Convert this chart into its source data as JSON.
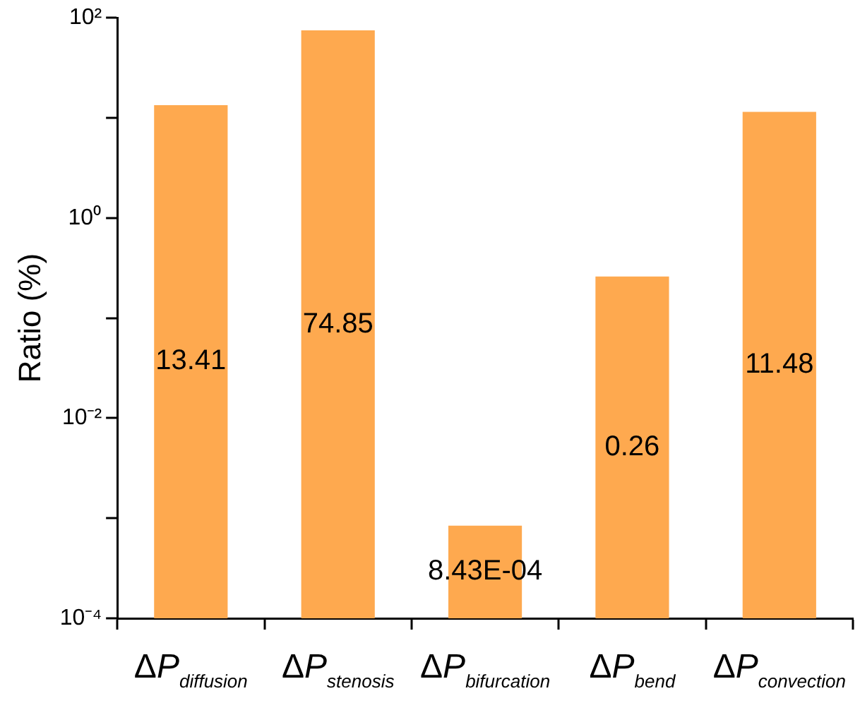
{
  "chart_data": {
    "type": "bar",
    "ylabel": "Ratio (%)",
    "categories": [
      "ΔP$_{diffusion}$",
      "ΔP$_{stenosis}$",
      "ΔP$_{bifurcation}$",
      "ΔP$_{bend}$",
      "ΔP$_{convection}$"
    ],
    "values": [
      13.41,
      74.85,
      0.000843,
      0.26,
      11.48
    ],
    "value_labels": [
      "13.41",
      "74.85",
      "8.43E-04",
      "0.26",
      "11.48"
    ],
    "color": "#fea94f",
    "log": "y",
    "ylim": [
      0.0001,
      100
    ],
    "yticks": [
      {
        "value": 0.0001,
        "label": "10⁻⁴"
      },
      {
        "value": 0.001,
        "label": null
      },
      {
        "value": 0.01,
        "label": "10⁻²"
      },
      {
        "value": 0.1,
        "label": null
      },
      {
        "value": 1,
        "label": "10⁰"
      },
      {
        "value": 10,
        "label": null
      },
      {
        "value": 100,
        "label": "10²"
      }
    ],
    "grid": false,
    "legend": false
  }
}
